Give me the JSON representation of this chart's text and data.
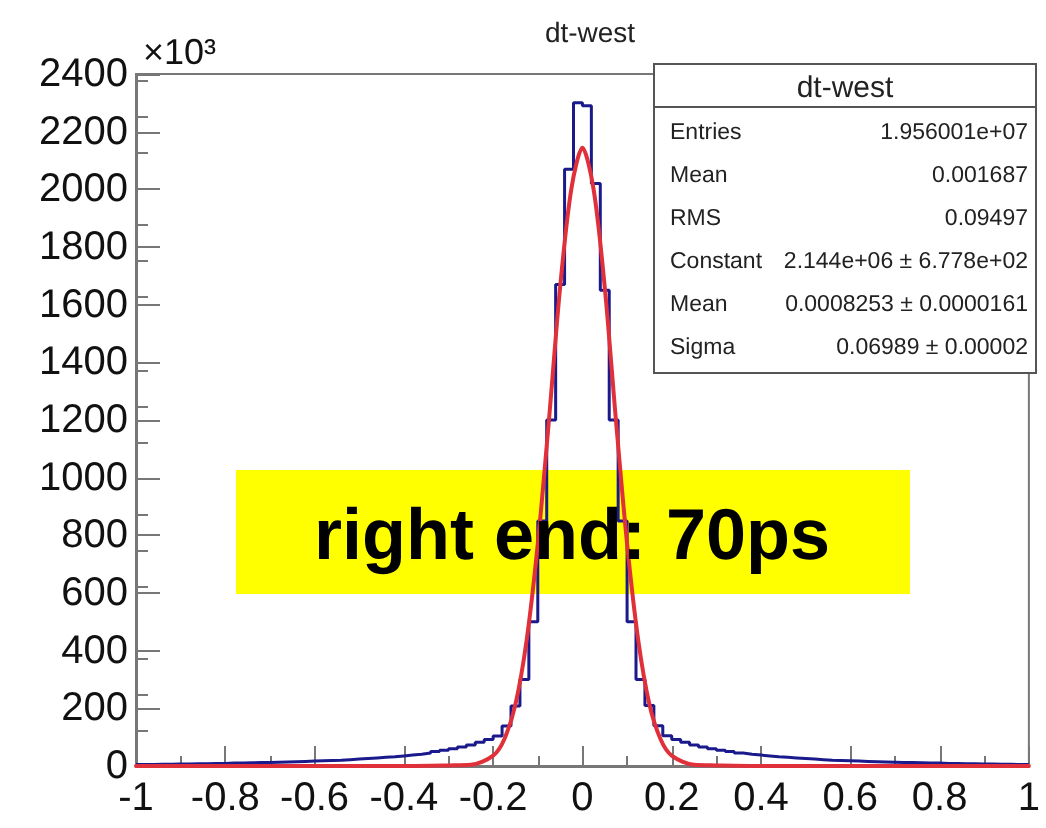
{
  "chart_data": {
    "type": "histogram",
    "title": "dt-west",
    "ylabel": "×10³",
    "bins": [
      -1,
      -0.98,
      -0.96,
      -0.94,
      -0.92,
      -0.9,
      -0.88,
      -0.86,
      -0.84,
      -0.82,
      -0.8,
      -0.78,
      -0.76,
      -0.74,
      -0.72,
      -0.7,
      -0.68,
      -0.66,
      -0.64,
      -0.62,
      -0.6,
      -0.58,
      -0.56,
      -0.54,
      -0.52,
      -0.5,
      -0.48,
      -0.46,
      -0.44,
      -0.42,
      -0.4,
      -0.38,
      -0.36,
      -0.34,
      -0.32,
      -0.3,
      -0.28,
      -0.26,
      -0.24,
      -0.22,
      -0.2,
      -0.18,
      -0.16,
      -0.14,
      -0.12,
      -0.1,
      -0.08,
      -0.06,
      -0.04,
      -0.02,
      0,
      0.02,
      0.04,
      0.06,
      0.08,
      0.1,
      0.12,
      0.14,
      0.16,
      0.18,
      0.2,
      0.22,
      0.24,
      0.26,
      0.28,
      0.3,
      0.32,
      0.34,
      0.36,
      0.38,
      0.4,
      0.42,
      0.44,
      0.46,
      0.48,
      0.5,
      0.52,
      0.54,
      0.56,
      0.58,
      0.6,
      0.62,
      0.64,
      0.66,
      0.68,
      0.7,
      0.72,
      0.74,
      0.76,
      0.78,
      0.8,
      0.82,
      0.84,
      0.86,
      0.88,
      0.9,
      0.92,
      0.94,
      0.96,
      0.98,
      1
    ],
    "series": [
      {
        "color": "#1a1a8c",
        "values": [
          5,
          5,
          6,
          6,
          7,
          7,
          8,
          8,
          9,
          9,
          10,
          10,
          11,
          12,
          12,
          13,
          14,
          15,
          16,
          17,
          18,
          19,
          20,
          22,
          24,
          26,
          28,
          30,
          32,
          35,
          38,
          41,
          45,
          50,
          55,
          60,
          66,
          73,
          82,
          92,
          104,
          139,
          208,
          300,
          500,
          850,
          1200,
          1670,
          2070,
          2300,
          2290,
          2020,
          1650,
          1200,
          850,
          500,
          300,
          210,
          140,
          105,
          92,
          82,
          73,
          66,
          60,
          55,
          50,
          45,
          41,
          38,
          35,
          32,
          30,
          28,
          26,
          24,
          22,
          20,
          19,
          18,
          17,
          16,
          15,
          14,
          13,
          12,
          12,
          11,
          10,
          10,
          9,
          9,
          8,
          8,
          7,
          7,
          6,
          6,
          5,
          5
        ]
      },
      {
        "type": "line",
        "color": "#e0303a",
        "x": [
          -1,
          -0.4,
          -0.3,
          -0.25,
          -0.2,
          -0.175,
          -0.15,
          -0.125,
          -0.1,
          -0.075,
          -0.05,
          -0.025,
          0,
          0.025,
          0.05,
          0.075,
          0.1,
          0.125,
          0.15,
          0.175,
          0.2,
          0.25,
          0.3,
          0.4,
          1
        ],
        "values": [
          0,
          0,
          2,
          4,
          36,
          93,
          214,
          436,
          771,
          1200,
          1660,
          2000,
          2144,
          2000,
          1660,
          1200,
          771,
          436,
          214,
          93,
          36,
          4,
          2,
          0,
          0
        ]
      }
    ],
    "xlim": [
      -1,
      1
    ],
    "xticks": [
      -1,
      -0.8,
      -0.6,
      -0.4,
      -0.2,
      0,
      0.2,
      0.4,
      0.6,
      0.8,
      1
    ],
    "ylim": [
      0,
      2400
    ],
    "yticks": [
      0,
      200,
      400,
      600,
      800,
      1000,
      1200,
      1400,
      1600,
      1800,
      2000,
      2200,
      2400
    ],
    "grid": false,
    "marker": "none",
    "line_style": "solid",
    "annotations": [
      "right end: 70ps",
      "dt-west",
      "Entries",
      "1.956001e+07",
      "Mean",
      "0.001687",
      "RMS",
      "0.09497",
      "Constant",
      "2.144e+06 ± 6.778e+02",
      "Mean",
      "0.0008253 ± 0.0000161",
      "Sigma",
      "0.06989 ± 0.00002"
    ]
  }
}
